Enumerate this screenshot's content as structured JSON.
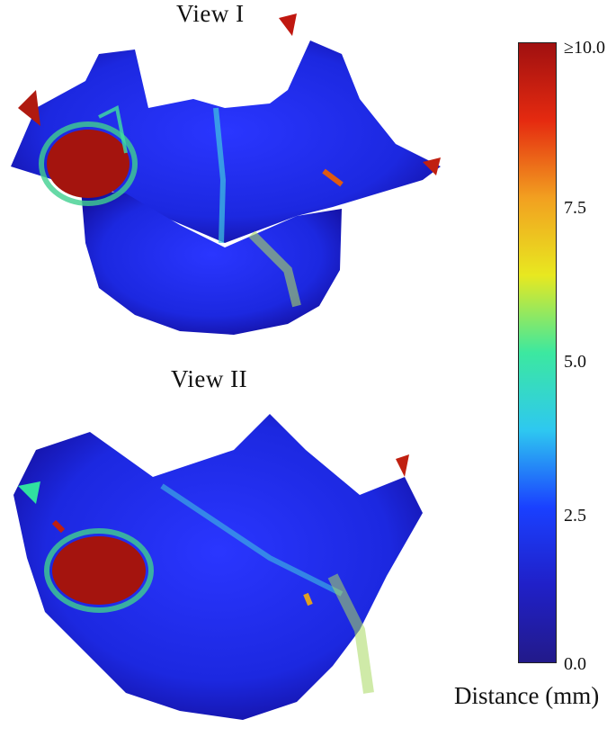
{
  "views": [
    {
      "title": "View I"
    },
    {
      "title": "View II"
    }
  ],
  "colorbar": {
    "ticks": [
      "≥10.0",
      "7.5",
      "5.0",
      "2.5",
      "0.0"
    ],
    "caption": "Distance (mm)",
    "colors": [
      "#a01010",
      "#e52a10",
      "#f2a020",
      "#e8e820",
      "#3ce8a0",
      "#2ec8f0",
      "#1a40ff",
      "#2020c8",
      "#221a8a"
    ]
  }
}
